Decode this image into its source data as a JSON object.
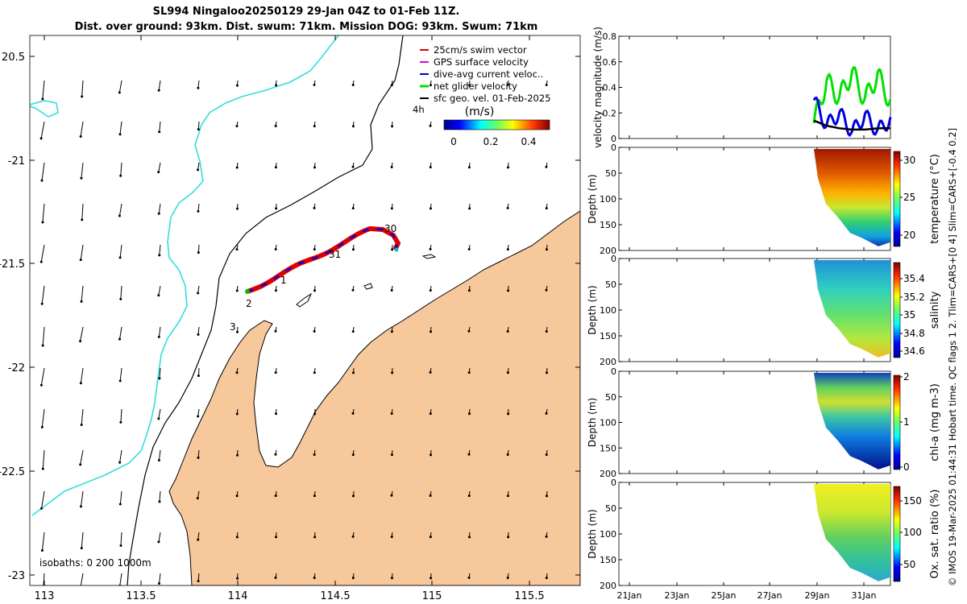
{
  "title": {
    "line1": "SL994 Ningaloo20250129 29-Jan 04Z to 01-Feb 11Z.",
    "line2": "Dist. over ground: 93km. Dist. swum: 71km. Mission DOG: 93km. Swum: 71km"
  },
  "map": {
    "x_ticks": [
      "113",
      "113.5",
      "114",
      "114.5",
      "115",
      "115.5"
    ],
    "y_ticks": [
      "20.5",
      "-21",
      "-21.5",
      "-22",
      "-22.5",
      "-23"
    ],
    "legend": [
      {
        "label": "25cm/s swim vector",
        "color": "#e00000"
      },
      {
        "label": "GPS surface velocity",
        "color": "#e000e0"
      },
      {
        "label": "dive-avg current veloc..",
        "color": "#0000e0"
      },
      {
        "label": "net glider velocity",
        "color": "#00e000"
      },
      {
        "label": "sfc geo. vel. 01-Feb-2025",
        "color": "#000000"
      }
    ],
    "legend_note": "4h",
    "colorbar_label": "(m/s)",
    "colorbar_ticks": [
      "0",
      "0.2",
      "0.4"
    ],
    "track_labels": [
      "30",
      "31",
      "1",
      "2",
      "3"
    ],
    "isobaths_label": "isobaths: 0   200  1000m",
    "land_color": "#f7c89b",
    "contour_color": "#33dddd"
  },
  "panels": {
    "time_ticks": [
      "21Jan",
      "23Jan",
      "25Jan",
      "27Jan",
      "29Jan",
      "31Jan"
    ],
    "velocity": {
      "ylabel": "velocity magnitude (m/s)",
      "y_ticks": [
        "0",
        "0.2",
        "0.4",
        "0.6",
        "0.8"
      ]
    },
    "temperature": {
      "ylabel": "Depth (m)",
      "cbar_label": "temperature (°C)",
      "cbar_ticks": [
        "30",
        "25",
        "20"
      ]
    },
    "salinity": {
      "ylabel": "Depth (m)",
      "cbar_label": "salinity",
      "cbar_ticks": [
        "35.4",
        "35.2",
        "35",
        "34.8",
        "34.6"
      ]
    },
    "chla": {
      "ylabel": "Depth (m)",
      "cbar_label": "chl-a (mg m-3)",
      "cbar_ticks": [
        "2",
        "1",
        "0"
      ]
    },
    "oxygen": {
      "ylabel": "Depth (m)",
      "cbar_label": "Ox. sat. ratio (%)",
      "cbar_ticks": [
        "150",
        "100",
        "50"
      ]
    },
    "depth_ticks": [
      "0",
      "50",
      "100",
      "150",
      "200"
    ]
  },
  "footer": "© IMOS 19-Mar-2025 01:44:31 Hobart time. QC flags 1  2. Tlim=CARS+[0 4] Slim=CARS+[-0.4 0.2]",
  "chart_data": [
    {
      "type": "line",
      "title": "SL994 Ningaloo20250129 29-Jan 04Z to 01-Feb 11Z.",
      "xlabel": "",
      "ylabel": "velocity magnitude (m/s)",
      "ylim": [
        0,
        0.8
      ],
      "x": [
        "29Jan",
        "29.5Jan",
        "30Jan",
        "30.5Jan",
        "31Jan",
        "31.5Jan",
        "01Feb"
      ],
      "series": [
        {
          "name": "net glider velocity",
          "values": [
            0.12,
            0.45,
            0.32,
            0.52,
            0.3,
            0.5,
            0.28
          ]
        },
        {
          "name": "dive-avg current veloc..",
          "values": [
            0.3,
            0.1,
            0.2,
            0.05,
            0.18,
            0.06,
            0.15
          ]
        },
        {
          "name": "sfc geo. vel. 01-Feb-2025",
          "values": [
            0.14,
            0.1,
            0.08,
            0.07,
            0.07,
            0.08,
            0.08
          ]
        }
      ]
    },
    {
      "type": "heatmap",
      "ylabel": "Depth (m)",
      "cbar_label": "temperature (°C)",
      "clim": [
        19,
        31
      ],
      "ylim": [
        200,
        0
      ]
    },
    {
      "type": "heatmap",
      "ylabel": "Depth (m)",
      "cbar_label": "salinity",
      "clim": [
        34.5,
        35.5
      ],
      "ylim": [
        200,
        0
      ]
    },
    {
      "type": "heatmap",
      "ylabel": "Depth (m)",
      "cbar_label": "chl-a (mg m-3)",
      "clim": [
        0,
        2
      ],
      "ylim": [
        200,
        0
      ]
    },
    {
      "type": "heatmap",
      "ylabel": "Depth (m)",
      "cbar_label": "Ox. sat. ratio (%)",
      "clim": [
        30,
        175
      ],
      "ylim": [
        200,
        0
      ]
    }
  ]
}
